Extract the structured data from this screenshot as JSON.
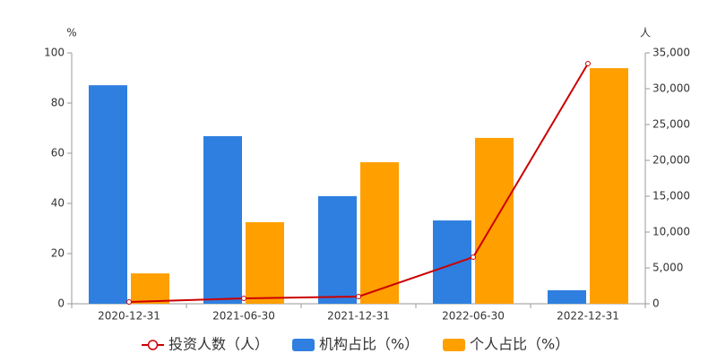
{
  "chart_data": {
    "type": "bar",
    "ylabel": "%",
    "y2label": "人",
    "categories": [
      "2020-12-31",
      "2021-06-30",
      "2021-12-31",
      "2022-06-30",
      "2022-12-31"
    ],
    "series": [
      {
        "name": "投资人数（人）",
        "type": "line",
        "axis": "y2",
        "color": "#cc0000",
        "values": [
          250,
          750,
          1000,
          6500,
          33500
        ]
      },
      {
        "name": "机构占比（%）",
        "type": "bar",
        "color": "#2e7fe0",
        "values": [
          87.1,
          66.8,
          42.9,
          33.2,
          5.4
        ]
      },
      {
        "name": "个人占比（%）",
        "type": "bar",
        "color": "#ff9f00",
        "values": [
          12.1,
          32.5,
          56.4,
          66.1,
          93.9
        ]
      }
    ],
    "ylim": [
      0,
      100
    ],
    "yticks": [
      0,
      20,
      40,
      60,
      80,
      100
    ],
    "y2lim": [
      0,
      35000
    ],
    "y2ticks": [
      0,
      {
        "value": 5000,
        "label": "5,000"
      },
      {
        "value": 10000,
        "label": "10,000"
      },
      {
        "value": 15000,
        "label": "15,000"
      },
      {
        "value": 20000,
        "label": "20,000"
      },
      {
        "value": 25000,
        "label": "25,000"
      },
      {
        "value": 30000,
        "label": "30,000"
      },
      {
        "value": 35000,
        "label": "35,000"
      }
    ],
    "grid": false
  }
}
